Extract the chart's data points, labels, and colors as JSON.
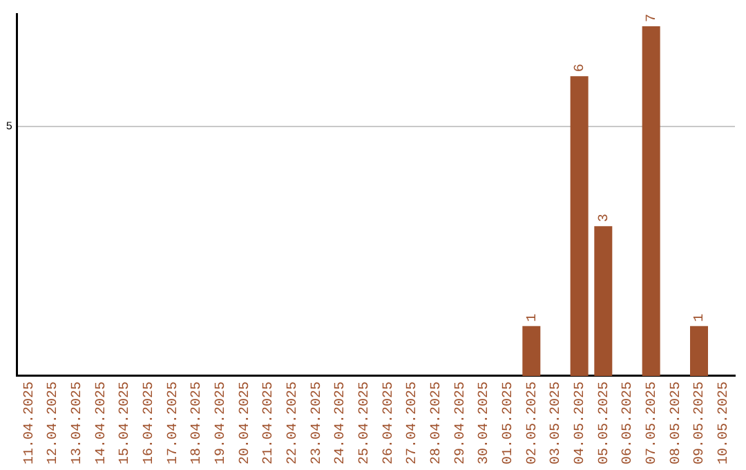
{
  "chart_data": {
    "type": "bar",
    "categories": [
      "11.04.2025",
      "12.04.2025",
      "13.04.2025",
      "14.04.2025",
      "15.04.2025",
      "16.04.2025",
      "17.04.2025",
      "18.04.2025",
      "19.04.2025",
      "20.04.2025",
      "21.04.2025",
      "22.04.2025",
      "23.04.2025",
      "24.04.2025",
      "25.04.2025",
      "26.04.2025",
      "27.04.2025",
      "28.04.2025",
      "29.04.2025",
      "30.04.2025",
      "01.05.2025",
      "02.05.2025",
      "03.05.2025",
      "04.05.2025",
      "05.05.2025",
      "06.05.2025",
      "07.05.2025",
      "08.05.2025",
      "09.05.2025",
      "10.05.2025"
    ],
    "values": [
      null,
      null,
      null,
      null,
      null,
      null,
      null,
      null,
      null,
      null,
      null,
      null,
      null,
      null,
      null,
      null,
      null,
      null,
      null,
      null,
      null,
      1,
      null,
      6,
      3,
      null,
      7,
      null,
      1,
      null
    ],
    "data_labels": true,
    "color": "#a0522d",
    "ylim": [
      0,
      7.25
    ],
    "yticks": [
      5
    ],
    "grid": "y",
    "legend": false
  }
}
